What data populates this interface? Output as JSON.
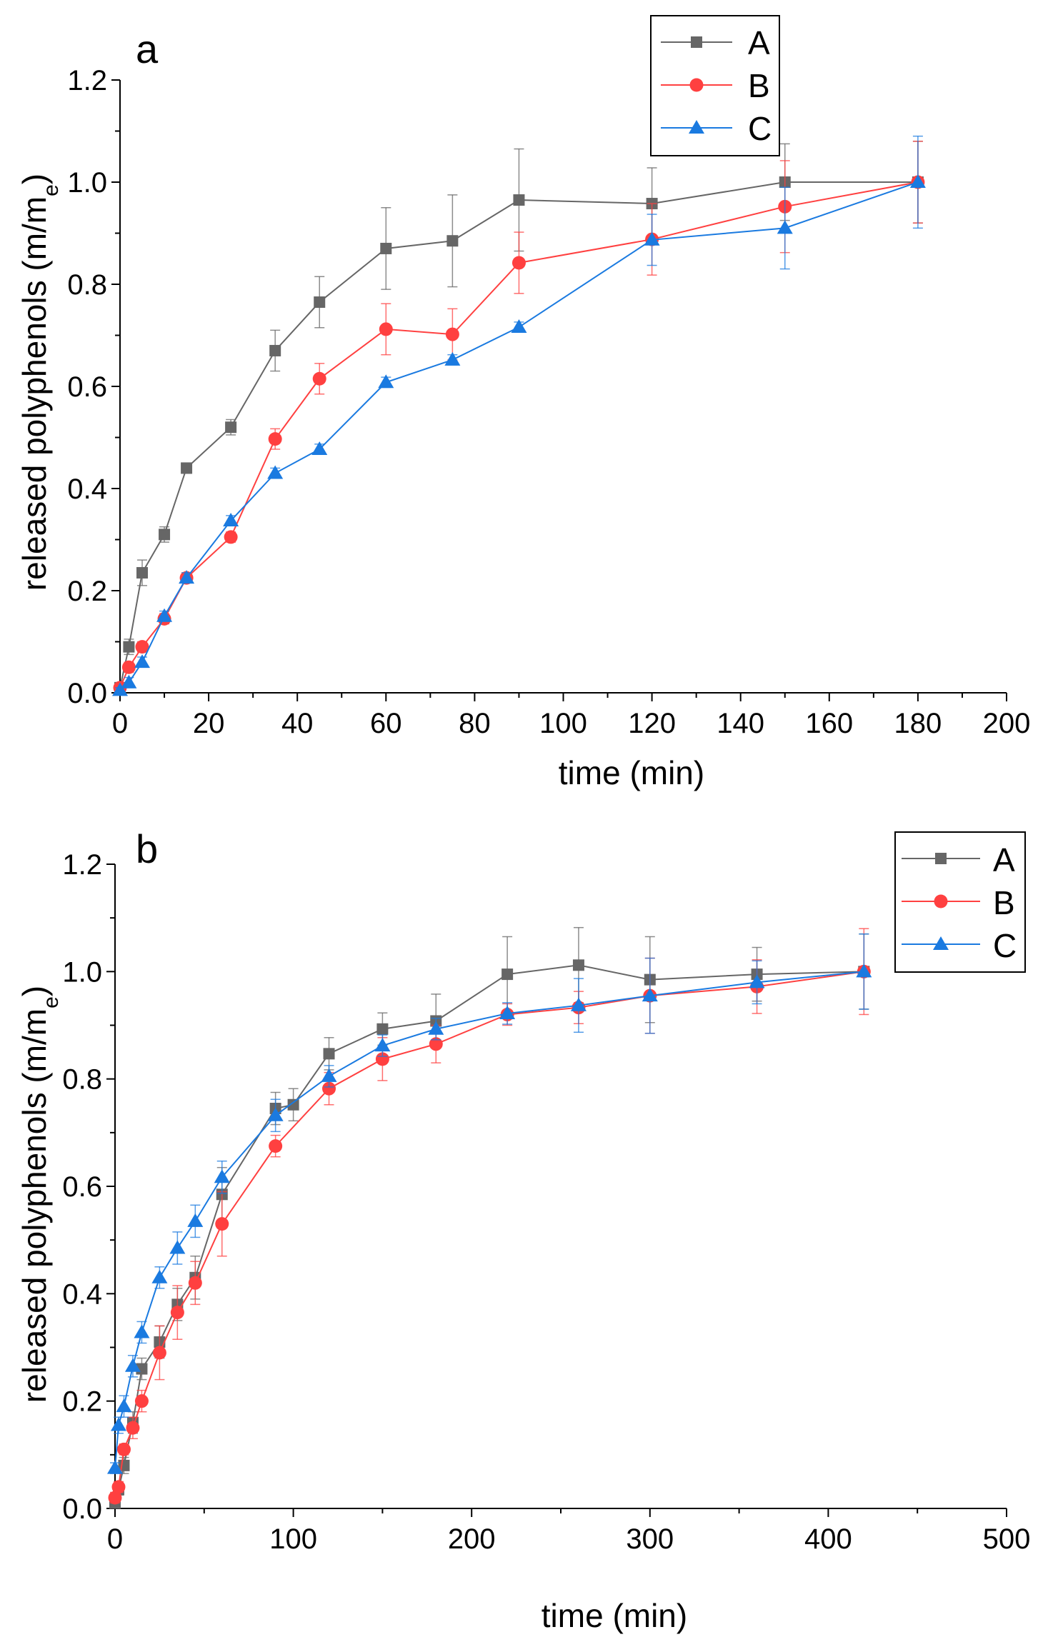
{
  "chart_data": [
    {
      "type": "line",
      "panel_label": "a",
      "xlabel": "time (min)",
      "ylabel": "released polyphenols (m/m",
      "ylabel_sub": "e",
      "ylabel_close": ")",
      "xlim": [
        0,
        200
      ],
      "ylim": [
        0,
        1.2
      ],
      "xticks": [
        0,
        20,
        40,
        60,
        80,
        100,
        120,
        140,
        160,
        180,
        200
      ],
      "yticks": [
        "0.0",
        "0.2",
        "0.4",
        "0.6",
        "0.8",
        "1.0",
        "1.2"
      ],
      "grid": false,
      "legend_position": "top-right",
      "series": [
        {
          "name": "A",
          "color": "#666666",
          "marker": "square",
          "x": [
            0,
            2,
            5,
            10,
            15,
            25,
            35,
            45,
            60,
            75,
            90,
            120,
            150,
            180
          ],
          "y": [
            0.01,
            0.09,
            0.235,
            0.31,
            0.44,
            0.52,
            0.67,
            0.765,
            0.87,
            0.885,
            0.965,
            0.958,
            1.0,
            1.0
          ],
          "err": [
            0.01,
            0.015,
            0.025,
            0.015,
            0.01,
            0.015,
            0.04,
            0.05,
            0.08,
            0.09,
            0.1,
            0.07,
            0.075,
            0.08
          ]
        },
        {
          "name": "B",
          "color": "#ff4040",
          "marker": "circle",
          "x": [
            0,
            2,
            5,
            10,
            15,
            25,
            35,
            45,
            60,
            75,
            90,
            120,
            150,
            180
          ],
          "y": [
            0.01,
            0.05,
            0.09,
            0.145,
            0.225,
            0.305,
            0.497,
            0.615,
            0.712,
            0.702,
            0.842,
            0.888,
            0.952,
            1.0
          ],
          "err": [
            0.005,
            0.01,
            0.01,
            0.01,
            0.01,
            0.01,
            0.02,
            0.03,
            0.05,
            0.05,
            0.06,
            0.07,
            0.09,
            0.08
          ]
        },
        {
          "name": "C",
          "color": "#1a7ae0",
          "marker": "triangle",
          "x": [
            0,
            2,
            5,
            10,
            15,
            25,
            35,
            45,
            60,
            75,
            90,
            120,
            150,
            180
          ],
          "y": [
            0.005,
            0.02,
            0.06,
            0.15,
            0.225,
            0.337,
            0.43,
            0.477,
            0.608,
            0.652,
            0.716,
            0.887,
            0.91,
            1.0
          ],
          "err": [
            0.005,
            0.01,
            0.01,
            0.01,
            0.01,
            0.01,
            0.01,
            0.01,
            0.01,
            0.01,
            0.01,
            0.05,
            0.08,
            0.09
          ]
        }
      ]
    },
    {
      "type": "line",
      "panel_label": "b",
      "xlabel": "time (min)",
      "ylabel": "released polyphenols (m/m",
      "ylabel_sub": "e",
      "ylabel_close": ")",
      "xlim": [
        0,
        500
      ],
      "ylim": [
        0,
        1.2
      ],
      "xticks": [
        0,
        100,
        200,
        300,
        400,
        500
      ],
      "yticks": [
        "0.0",
        "0.2",
        "0.4",
        "0.6",
        "0.8",
        "1.0",
        "1.2"
      ],
      "grid": false,
      "legend_position": "top-right",
      "series": [
        {
          "name": "A",
          "color": "#666666",
          "marker": "square",
          "x": [
            0,
            2,
            5,
            10,
            15,
            25,
            35,
            45,
            60,
            90,
            100,
            120,
            150,
            180,
            220,
            260,
            300,
            360,
            420
          ],
          "y": [
            0.01,
            0.035,
            0.08,
            0.16,
            0.26,
            0.31,
            0.38,
            0.43,
            0.585,
            0.745,
            0.752,
            0.847,
            0.893,
            0.908,
            0.995,
            1.012,
            0.985,
            0.995,
            1.0
          ],
          "err": [
            0.005,
            0.01,
            0.015,
            0.02,
            0.02,
            0.03,
            0.03,
            0.04,
            0.05,
            0.03,
            0.03,
            0.03,
            0.03,
            0.05,
            0.07,
            0.07,
            0.08,
            0.05,
            0.07
          ]
        },
        {
          "name": "B",
          "color": "#ff4040",
          "marker": "circle",
          "x": [
            0,
            2,
            5,
            10,
            15,
            25,
            35,
            45,
            60,
            90,
            120,
            150,
            180,
            220,
            260,
            300,
            360,
            420
          ],
          "y": [
            0.02,
            0.04,
            0.11,
            0.15,
            0.2,
            0.29,
            0.365,
            0.42,
            0.53,
            0.675,
            0.782,
            0.837,
            0.865,
            0.92,
            0.933,
            0.955,
            0.972,
            1.0
          ],
          "err": [
            0.01,
            0.01,
            0.01,
            0.02,
            0.02,
            0.05,
            0.05,
            0.04,
            0.06,
            0.02,
            0.03,
            0.04,
            0.035,
            0.02,
            0.03,
            0.07,
            0.05,
            0.08
          ]
        },
        {
          "name": "C",
          "color": "#1a7ae0",
          "marker": "triangle",
          "x": [
            0,
            2,
            5,
            10,
            15,
            25,
            35,
            45,
            60,
            90,
            120,
            150,
            180,
            220,
            260,
            300,
            360,
            420
          ],
          "y": [
            0.075,
            0.155,
            0.19,
            0.265,
            0.328,
            0.43,
            0.485,
            0.535,
            0.617,
            0.732,
            0.805,
            0.862,
            0.893,
            0.922,
            0.937,
            0.955,
            0.98,
            1.0
          ],
          "err": [
            0.01,
            0.015,
            0.02,
            0.02,
            0.02,
            0.02,
            0.03,
            0.03,
            0.03,
            0.03,
            0.02,
            0.02,
            0.02,
            0.02,
            0.05,
            0.07,
            0.04,
            0.07
          ]
        }
      ]
    }
  ]
}
